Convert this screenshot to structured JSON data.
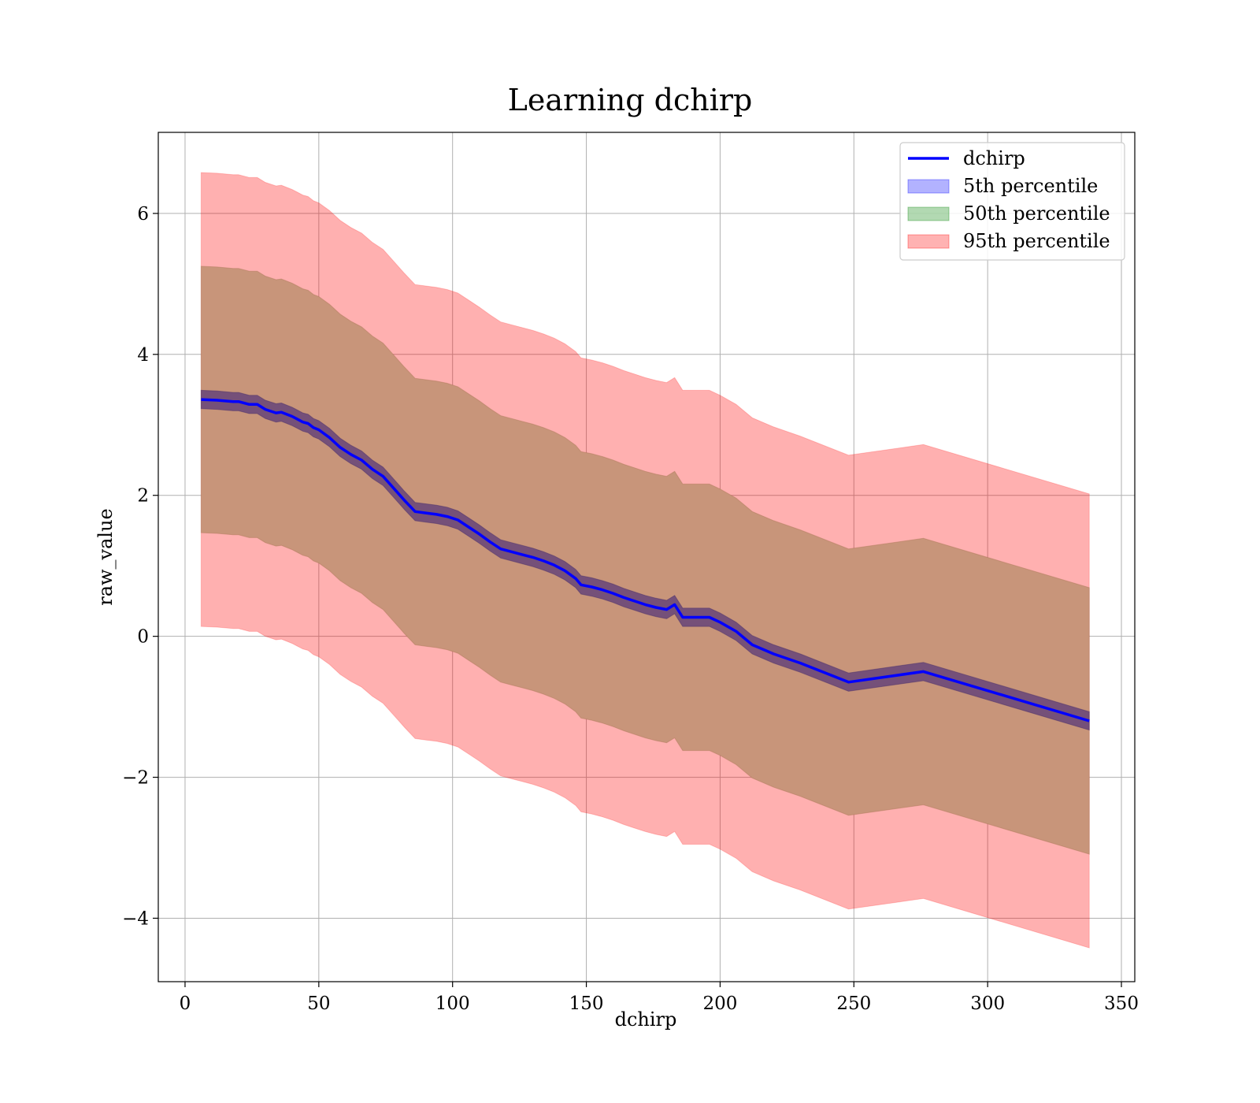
{
  "chart_data": {
    "type": "line",
    "title": "Learning dchirp",
    "xlabel": "dchirp",
    "ylabel": "raw_value",
    "xlim": [
      -10,
      355
    ],
    "ylim": [
      -4.9,
      7.15
    ],
    "xticks": [
      0,
      50,
      100,
      150,
      200,
      250,
      300,
      350
    ],
    "yticks": [
      -4,
      -2,
      0,
      2,
      4,
      6
    ],
    "grid": true,
    "legend_position": "top-right",
    "colors": {
      "line": "#0000ff",
      "band_5th": "#0000ff",
      "band_50th": "#008000",
      "band_95th": "#ff0000",
      "overlap_50_95": "#c8957a"
    },
    "x": [
      6,
      12,
      18,
      20,
      24,
      27,
      30,
      34,
      36,
      40,
      42,
      44,
      46,
      48,
      50,
      54,
      58,
      62,
      66,
      70,
      74,
      78,
      82,
      86,
      90,
      94,
      98,
      102,
      106,
      110,
      114,
      118,
      122,
      126,
      130,
      134,
      138,
      142,
      146,
      148,
      152,
      156,
      160,
      164,
      168,
      172,
      176,
      180,
      183,
      186,
      190,
      196,
      200,
      206,
      212,
      220,
      230,
      248,
      276,
      338
    ],
    "series": [
      {
        "name": "dchirp",
        "kind": "line",
        "values": [
          3.36,
          3.35,
          3.33,
          3.33,
          3.29,
          3.29,
          3.22,
          3.17,
          3.18,
          3.12,
          3.08,
          3.04,
          3.02,
          2.96,
          2.93,
          2.82,
          2.68,
          2.58,
          2.5,
          2.37,
          2.27,
          2.1,
          1.93,
          1.77,
          1.75,
          1.73,
          1.7,
          1.65,
          1.55,
          1.45,
          1.34,
          1.24,
          1.2,
          1.16,
          1.12,
          1.07,
          1.01,
          0.93,
          0.82,
          0.73,
          0.7,
          0.66,
          0.61,
          0.55,
          0.5,
          0.45,
          0.41,
          0.38,
          0.45,
          0.27,
          0.27,
          0.27,
          0.2,
          0.07,
          -0.12,
          -0.25,
          -0.38,
          -0.65,
          -0.5,
          -1.2
        ]
      },
      {
        "name": "5th percentile",
        "kind": "band",
        "halfwidth": 0.13
      },
      {
        "name": "50th percentile",
        "kind": "band",
        "halfwidth": 1.89
      },
      {
        "name": "95th percentile",
        "kind": "band",
        "halfwidth": 3.22
      }
    ]
  }
}
